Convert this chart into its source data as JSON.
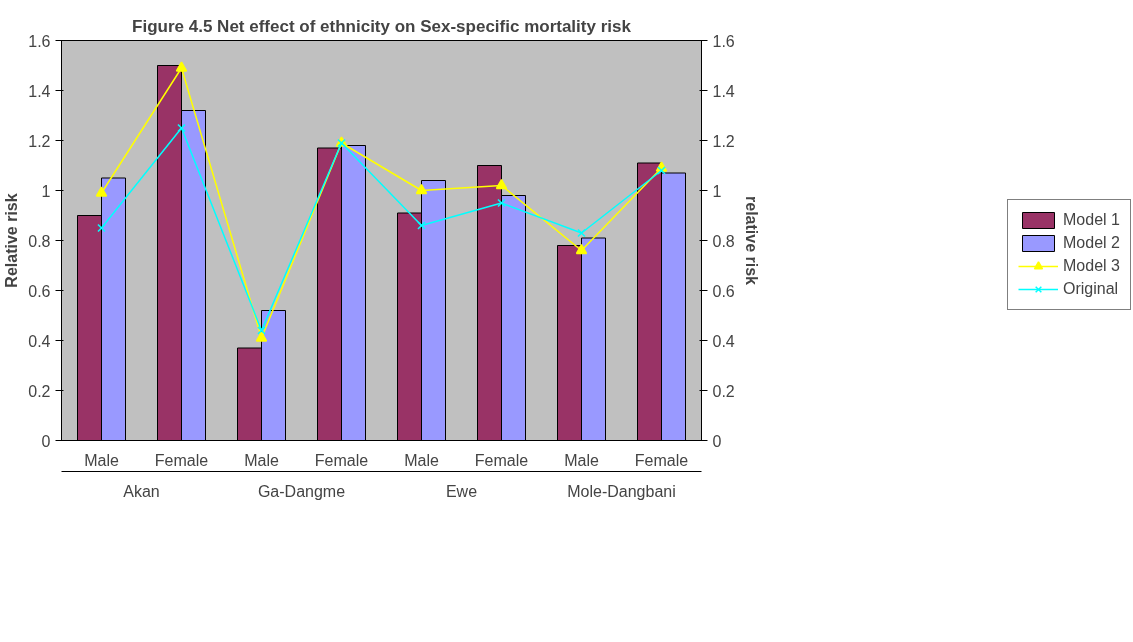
{
  "chart_data": {
    "type": "bar",
    "title": "Figure 4.5 Net effect of ethnicity on Sex-specific mortality risk",
    "ylabel": "Relative risk",
    "y2label": "relative risk",
    "categories": [
      "Male",
      "Female",
      "Male",
      "Female",
      "Male",
      "Female",
      "Male",
      "Female"
    ],
    "annotations": [
      "Akan",
      "Ga-Dangme",
      "Ewe",
      "Mole-Dangbani"
    ],
    "series": [
      {
        "name": "Model 1",
        "color": "#993366",
        "values": [
          0.9,
          1.5,
          0.37,
          1.17,
          0.91,
          1.1,
          0.78,
          1.11
        ]
      },
      {
        "name": "Model 2",
        "color": "#9999ff",
        "values": [
          1.05,
          1.32,
          0.52,
          1.18,
          1.04,
          0.98,
          0.81,
          1.07
        ]
      },
      {
        "name": "Model 3",
        "type": "line",
        "marker": "triangle",
        "color": "#ffff00",
        "values": [
          0.99,
          1.49,
          0.41,
          1.19,
          1.0,
          1.02,
          0.76,
          1.09
        ]
      },
      {
        "name": "Original",
        "type": "line",
        "marker": "x",
        "color": "#00ffff",
        "values": [
          0.85,
          1.25,
          0.44,
          1.19,
          0.86,
          0.95,
          0.83,
          1.08
        ]
      }
    ],
    "ylim": [
      0,
      1.6
    ],
    "yticks": [
      0,
      0.2,
      0.4,
      0.6,
      0.8,
      1,
      1.2,
      1.4,
      1.6
    ],
    "y2lim": [
      0,
      1.6
    ],
    "y2ticks": [
      0,
      0.2,
      0.4,
      0.6,
      0.8,
      1,
      1.2,
      1.4,
      1.6
    ],
    "legend": "right",
    "grid": false
  }
}
